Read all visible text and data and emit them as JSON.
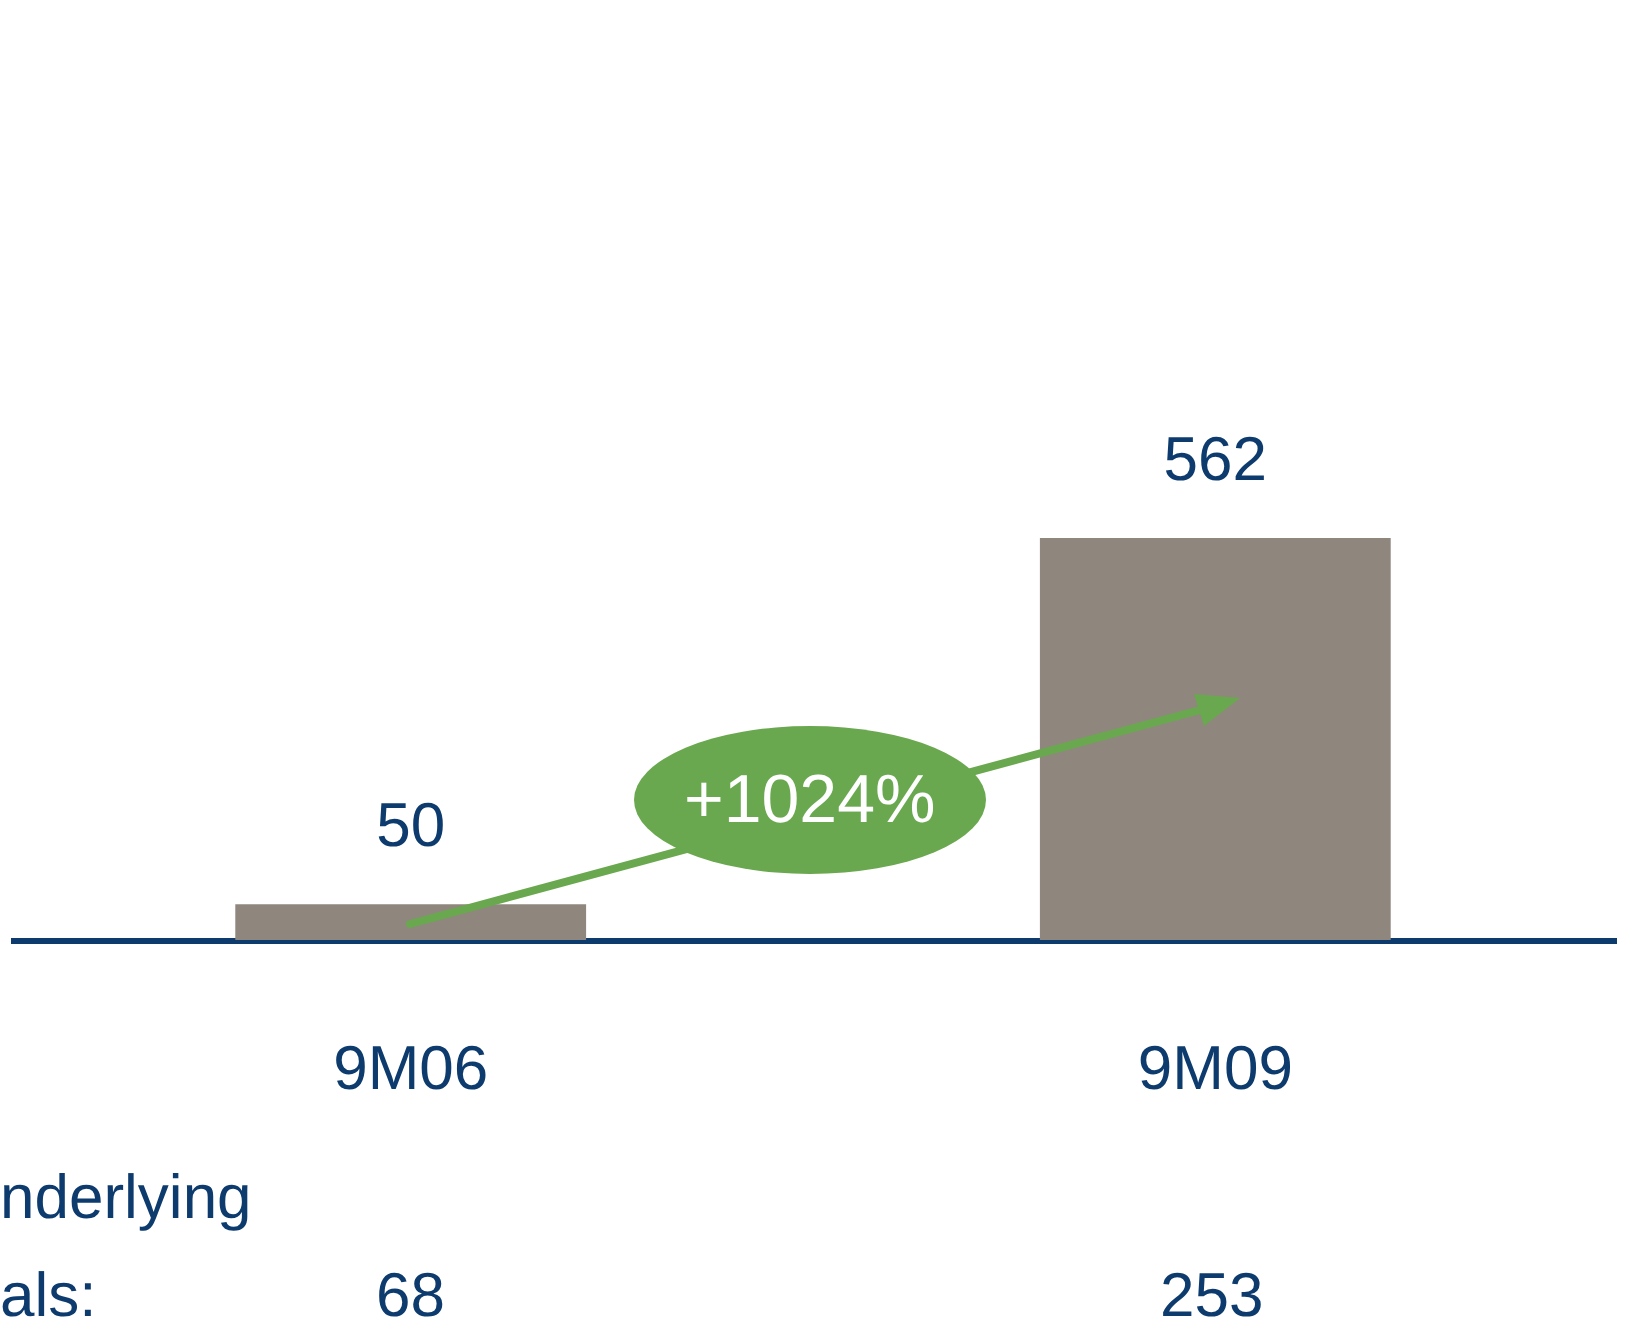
{
  "chart_data": {
    "type": "bar",
    "categories": [
      "9M06",
      "9M09"
    ],
    "values": [
      50,
      562
    ],
    "color": "#8f877d",
    "data_labels": true,
    "annotations": [
      "+1024%",
      "nderlying",
      "als:",
      "68",
      "253"
    ]
  }
}
